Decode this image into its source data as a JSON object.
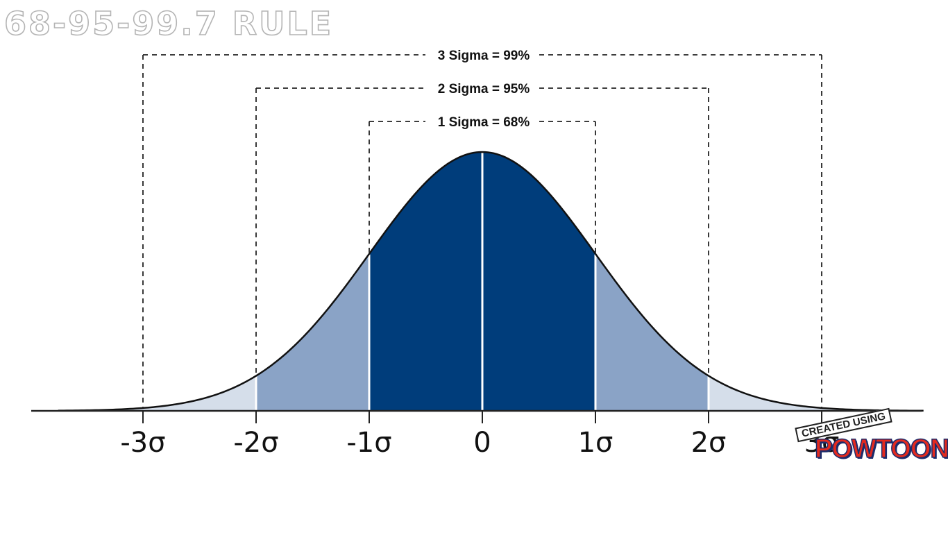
{
  "page": {
    "title": "68-95-99.7 RULE"
  },
  "watermark": {
    "top_text": "CREATED USING",
    "brand_text": "POWTOON"
  },
  "colors": {
    "inner_band": "#003d7b",
    "middle_band": "#8aa3c6",
    "outer_band": "#d5deea",
    "curve": "#111111",
    "axis": "#222222",
    "brackets": "#222222"
  },
  "chart_data": {
    "type": "area",
    "title": "",
    "distribution": "normal",
    "mean": 0,
    "sd": 1,
    "xlim": [
      -3.75,
      3.9
    ],
    "x_ticks": [
      -3,
      -2,
      -1,
      0,
      1,
      2,
      3
    ],
    "tick_labels": [
      "-3σ",
      "-2σ",
      "-1σ",
      "0",
      "1σ",
      "2σ",
      "3σ"
    ],
    "bands": [
      {
        "name": "1 Sigma",
        "from": -1,
        "to": 1,
        "percent": 68,
        "label": "1 Sigma = 68%"
      },
      {
        "name": "2 Sigma",
        "from": -2,
        "to": 2,
        "percent": 95,
        "label": "2 Sigma = 95%"
      },
      {
        "name": "3 Sigma",
        "from": -3,
        "to": 3,
        "percent": 99,
        "label": "3 Sigma = 99%"
      }
    ],
    "grid": false,
    "legend": "none"
  }
}
